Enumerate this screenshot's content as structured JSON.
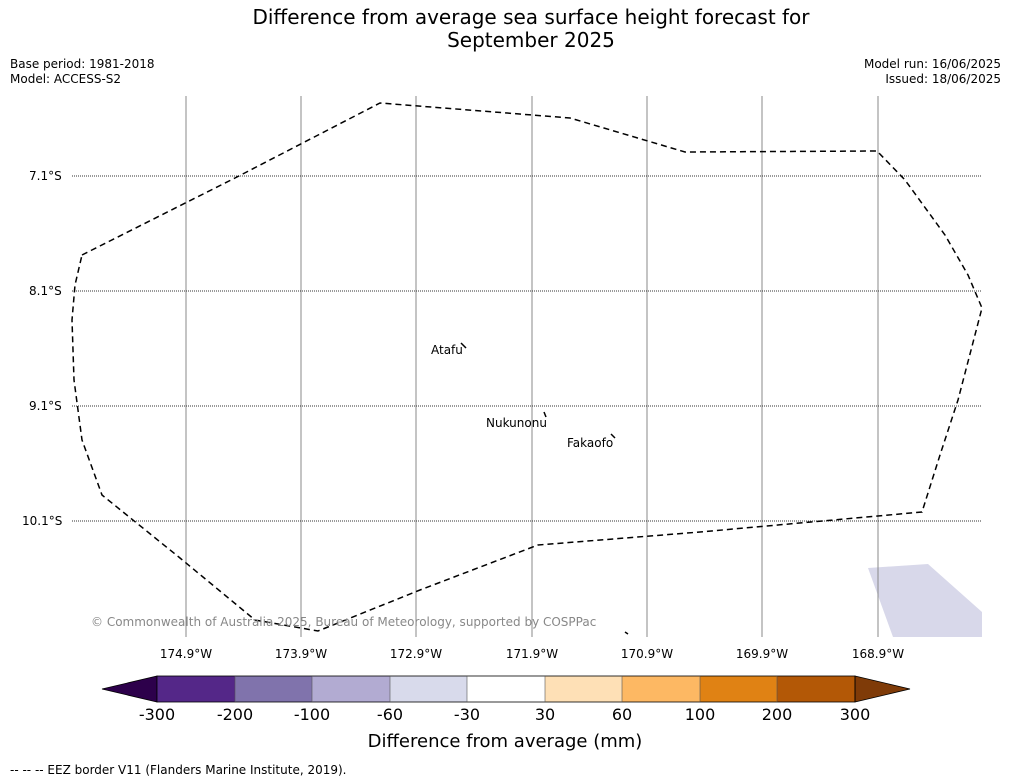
{
  "title_line1": "Difference from average sea surface height forecast for",
  "title_line2": "September 2025",
  "meta_left": {
    "base_period": "Base period: 1981-2018",
    "model": "Model: ACCESS-S2"
  },
  "meta_right": {
    "model_run": "Model run: 16/06/2025",
    "issued": "Issued: 18/06/2025"
  },
  "map": {
    "lat_labels": [
      "7.1°S",
      "8.1°S",
      "9.1°S",
      "10.1°S"
    ],
    "lon_labels": [
      "174.9°W",
      "173.9°W",
      "172.9°W",
      "171.9°W",
      "170.9°W",
      "169.9°W",
      "168.9°W"
    ],
    "places": {
      "atafu": "Atafu",
      "nukunonu": "Nukunonu",
      "fakaofo": "Fakaofo"
    },
    "copyright": "© Commonwealth of Australia 2025, Bureau of Meteorology, supported by COSPPac",
    "anomaly_patch_color": "#d8d8ea",
    "eez_border_style": "dashed"
  },
  "colorbar": {
    "labels": [
      "-300",
      "-200",
      "-100",
      "-60",
      "-30",
      "30",
      "60",
      "100",
      "200",
      "300"
    ],
    "colors": [
      "#2d004b",
      "#542788",
      "#8073ac",
      "#b2abd2",
      "#d8daeb",
      "#ffffff",
      "#fee0b6",
      "#fdb863",
      "#e08214",
      "#b35806",
      "#7f3b08"
    ],
    "title": "Difference from average (mm)"
  },
  "footer": "--  --  -- EEZ border V11 (Flanders Marine Institute, 2019)."
}
